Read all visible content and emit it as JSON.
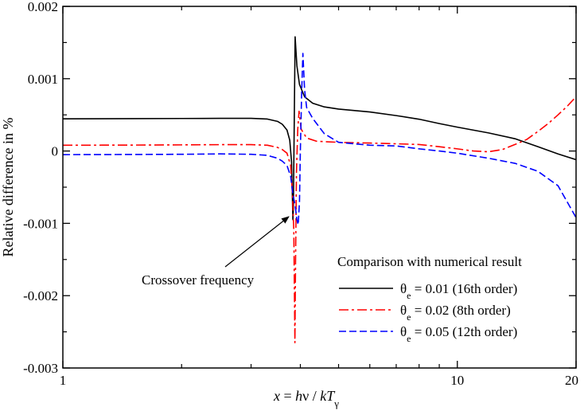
{
  "chart_data": {
    "type": "line",
    "xlabel": "x = hν / kT_γ",
    "ylabel": "Relative difference in %",
    "x_scale": "log",
    "xlim": [
      1,
      20
    ],
    "ylim": [
      -0.003,
      0.002
    ],
    "x_ticks": [
      1,
      10,
      20
    ],
    "x_tick_labels": [
      "1",
      "10",
      "20"
    ],
    "y_ticks": [
      -0.003,
      -0.002,
      -0.001,
      0,
      0.001,
      0.002
    ],
    "y_tick_labels": [
      "-0.003",
      "-0.002",
      "-0.001",
      "0",
      "0.001",
      "0.002"
    ],
    "grid": false,
    "legend": {
      "title": "Comparison with numerical result",
      "placement": "bottom-right"
    },
    "annotation": {
      "text": "Crossover frequency",
      "arrow_to": [
        3.83,
        -0.00078
      ]
    },
    "series": [
      {
        "name_symbol": "θ",
        "name_sub": "e",
        "name_rest": " = 0.01 (16th order)",
        "color": "#000000",
        "dash": "solid",
        "points": [
          [
            1.0,
            0.000445
          ],
          [
            1.5,
            0.000448
          ],
          [
            2.0,
            0.00045
          ],
          [
            2.5,
            0.000452
          ],
          [
            3.0,
            0.000452
          ],
          [
            3.3,
            0.000442
          ],
          [
            3.5,
            0.00041
          ],
          [
            3.6,
            0.00037
          ],
          [
            3.7,
            0.00029
          ],
          [
            3.76,
            0.00015
          ],
          [
            3.8,
            -0.00015
          ],
          [
            3.83,
            -0.00095
          ],
          [
            3.84,
            -0.0008
          ],
          [
            3.86,
            0.0004
          ],
          [
            3.88,
            0.00158
          ],
          [
            3.92,
            0.00118
          ],
          [
            3.98,
            0.00092
          ],
          [
            4.1,
            0.00075
          ],
          [
            4.3,
            0.00066
          ],
          [
            4.6,
            0.00061
          ],
          [
            5.0,
            0.00058
          ],
          [
            6.0,
            0.00054
          ],
          [
            7.0,
            0.00049
          ],
          [
            8.0,
            0.00044
          ],
          [
            9.0,
            0.00038
          ],
          [
            10.0,
            0.00033
          ],
          [
            12.0,
            0.00025
          ],
          [
            14.0,
            0.00017
          ],
          [
            16.0,
            6e-05
          ],
          [
            18.0,
            -4e-05
          ],
          [
            20.0,
            -0.00012
          ]
        ]
      },
      {
        "name_symbol": "θ",
        "name_sub": "e",
        "name_rest": " = 0.02 (8th order)",
        "color": "#ff0000",
        "dash": "dash-dot",
        "points": [
          [
            1.0,
            8e-05
          ],
          [
            1.5,
            8.2e-05
          ],
          [
            2.0,
            8.5e-05
          ],
          [
            2.5,
            8.8e-05
          ],
          [
            3.0,
            8.8e-05
          ],
          [
            3.3,
            8e-05
          ],
          [
            3.5,
            5e-05
          ],
          [
            3.6,
            2e-05
          ],
          [
            3.7,
            -3e-05
          ],
          [
            3.78,
            -0.0002
          ],
          [
            3.82,
            -0.0006
          ],
          [
            3.85,
            -0.0011
          ],
          [
            3.875,
            -0.00265
          ],
          [
            3.89,
            -0.0015
          ],
          [
            3.91,
            -0.0003
          ],
          [
            3.94,
            0.0003
          ],
          [
            3.97,
            0.00055
          ],
          [
            4.02,
            0.0003
          ],
          [
            4.15,
            0.00018
          ],
          [
            4.4,
            0.000135
          ],
          [
            5.0,
            0.00012
          ],
          [
            6.0,
            0.00011
          ],
          [
            7.0,
            0.0001
          ],
          [
            8.0,
            9e-05
          ],
          [
            9.0,
            6e-05
          ],
          [
            10.0,
            3e-05
          ],
          [
            11.0,
            0.0
          ],
          [
            12.0,
            -1e-05
          ],
          [
            13.0,
            2e-05
          ],
          [
            14.0,
            9e-05
          ],
          [
            15.0,
            0.00016
          ],
          [
            16.0,
            0.00027
          ],
          [
            17.0,
            0.00038
          ],
          [
            18.0,
            0.0005
          ],
          [
            19.0,
            0.00062
          ],
          [
            20.0,
            0.00075
          ]
        ]
      },
      {
        "name_symbol": "θ",
        "name_sub": "e",
        "name_rest": " = 0.05 (12th order)",
        "color": "#0000ff",
        "dash": "dashed",
        "points": [
          [
            1.0,
            -5e-05
          ],
          [
            1.5,
            -4.8e-05
          ],
          [
            2.0,
            -4.5e-05
          ],
          [
            2.5,
            -4e-05
          ],
          [
            3.0,
            -4.5e-05
          ],
          [
            3.3,
            -6e-05
          ],
          [
            3.5,
            -0.0001
          ],
          [
            3.6,
            -0.00014
          ],
          [
            3.7,
            -0.0002
          ],
          [
            3.78,
            -0.00035
          ],
          [
            3.83,
            -0.0006
          ],
          [
            3.88,
            -0.00075
          ],
          [
            3.92,
            -0.00095
          ],
          [
            3.95,
            -0.00102
          ],
          [
            3.98,
            -0.0007
          ],
          [
            4.0,
            0.0
          ],
          [
            4.03,
            0.0008
          ],
          [
            4.06,
            0.00135
          ],
          [
            4.1,
            0.00085
          ],
          [
            4.15,
            0.0006
          ],
          [
            4.3,
            0.00045
          ],
          [
            4.6,
            0.00024
          ],
          [
            5.0,
            0.00012
          ],
          [
            6.0,
            8e-05
          ],
          [
            7.0,
            7e-05
          ],
          [
            8.0,
            3e-05
          ],
          [
            9.0,
            0.0
          ],
          [
            10.0,
            -3e-05
          ],
          [
            12.0,
            -0.0001
          ],
          [
            14.0,
            -0.00017
          ],
          [
            16.0,
            -0.00028
          ],
          [
            18.0,
            -0.00048
          ],
          [
            20.0,
            -0.00092
          ]
        ]
      }
    ]
  }
}
